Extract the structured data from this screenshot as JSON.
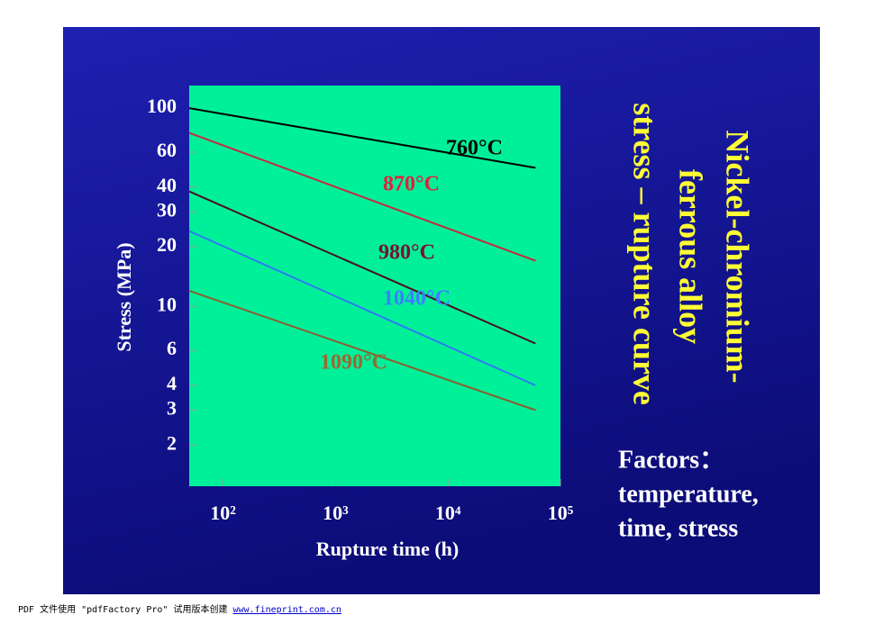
{
  "chart_data": {
    "type": "line",
    "title": [
      "Nickel-chromium-",
      "ferrous alloy",
      "stress – rupture curve"
    ],
    "x_label": "Rupture time (h)",
    "y_label": "Stress  (MPa)",
    "x": [
      50,
      60000
    ],
    "series": [
      {
        "name": "760°C",
        "color": "#000000",
        "label_color": "#000000",
        "values": [
          100,
          50
        ]
      },
      {
        "name": "870°C",
        "color": "#c42a40",
        "label_color": "#e0203a",
        "values": [
          75,
          17
        ]
      },
      {
        "name": "980°C",
        "color": "#4a1020",
        "label_color": "#7a1030",
        "values": [
          38,
          6.5
        ]
      },
      {
        "name": "1040°C",
        "color": "#2e7cf0",
        "label_color": "#3a80ff",
        "values": [
          24,
          4
        ]
      },
      {
        "name": "1090°C",
        "color": "#8a6030",
        "label_color": "#9a6a30",
        "values": [
          12,
          3
        ]
      }
    ],
    "xlim": [
      50,
      100000
    ],
    "ylim": [
      1.24,
      130
    ],
    "xticks": [
      {
        "value": 100,
        "label": "10²"
      },
      {
        "value": 1000,
        "label": "10³"
      },
      {
        "value": 10000,
        "label": "10⁴"
      },
      {
        "value": 100000,
        "label": "10⁵"
      }
    ],
    "yticks": [
      100,
      60,
      40,
      30,
      20,
      10,
      6,
      4,
      3,
      2
    ],
    "x_log": true,
    "y_log": true,
    "plot_color": "#00f09a"
  },
  "notes": [
    "Factors：",
    "temperature,",
    "time, stress"
  ],
  "footer": {
    "text": "PDF 文件使用 \"pdfFactory Pro\" 试用版本创建 ",
    "link": "www.fineprint.com.cn"
  }
}
